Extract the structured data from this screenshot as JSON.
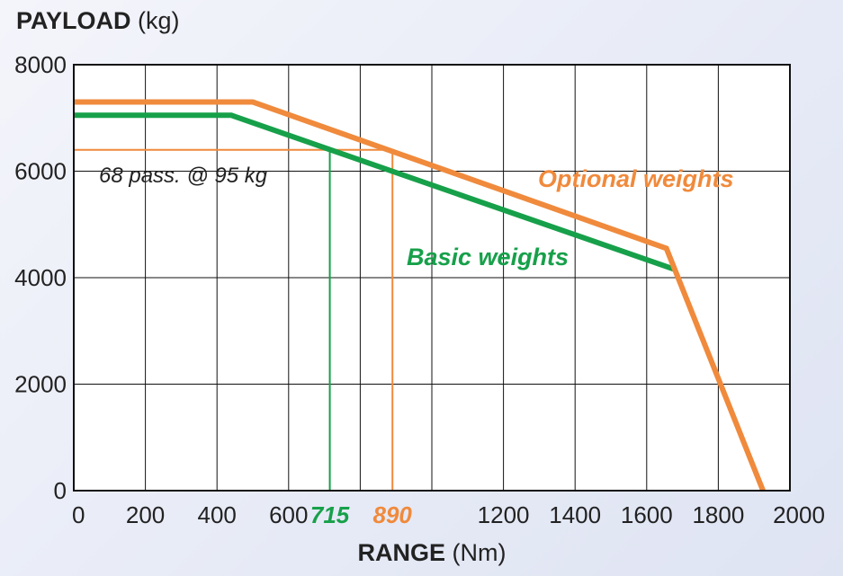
{
  "chart_data": {
    "type": "line",
    "y_title_bold": "PAYLOAD",
    "y_title_unit": " (kg)",
    "x_title_bold": "RANGE",
    "x_title_unit": " (Nm)",
    "xlim": [
      0,
      2000
    ],
    "ylim": [
      0,
      8000
    ],
    "grid": true,
    "x_ticks": [
      {
        "value": 0,
        "label": "0"
      },
      {
        "value": 200,
        "label": "200"
      },
      {
        "value": 400,
        "label": "400"
      },
      {
        "value": 600,
        "label": "600"
      },
      {
        "value": 715,
        "label": "715",
        "highlight": "basic"
      },
      {
        "value": 890,
        "label": "890",
        "highlight": "optional"
      },
      {
        "value": 1200,
        "label": "1200"
      },
      {
        "value": 1400,
        "label": "1400"
      },
      {
        "value": 1600,
        "label": "1600"
      },
      {
        "value": 1800,
        "label": "1800"
      },
      {
        "value": 2000,
        "label": "2000"
      }
    ],
    "grid_x": [
      200,
      400,
      600,
      800,
      1000,
      1200,
      1400,
      1600,
      1800
    ],
    "y_ticks": [
      {
        "value": 0,
        "label": "0"
      },
      {
        "value": 2000,
        "label": "2000"
      },
      {
        "value": 4000,
        "label": "4000"
      },
      {
        "value": 6000,
        "label": "6000"
      },
      {
        "value": 8000,
        "label": "8000"
      }
    ],
    "series": [
      {
        "name": "Optional weights",
        "color": "#f08a3c",
        "points": [
          [
            0,
            7300
          ],
          [
            500,
            7300
          ],
          [
            1655,
            4550
          ],
          [
            1925,
            0
          ]
        ]
      },
      {
        "name": "Basic weights",
        "color": "#17a04a",
        "points": [
          [
            0,
            7050
          ],
          [
            440,
            7050
          ],
          [
            1680,
            4150
          ]
        ]
      }
    ],
    "reference": {
      "label": "68 pass. @ 95 kg",
      "payload": 6400,
      "basic_range": 715,
      "optional_range": 890
    }
  }
}
